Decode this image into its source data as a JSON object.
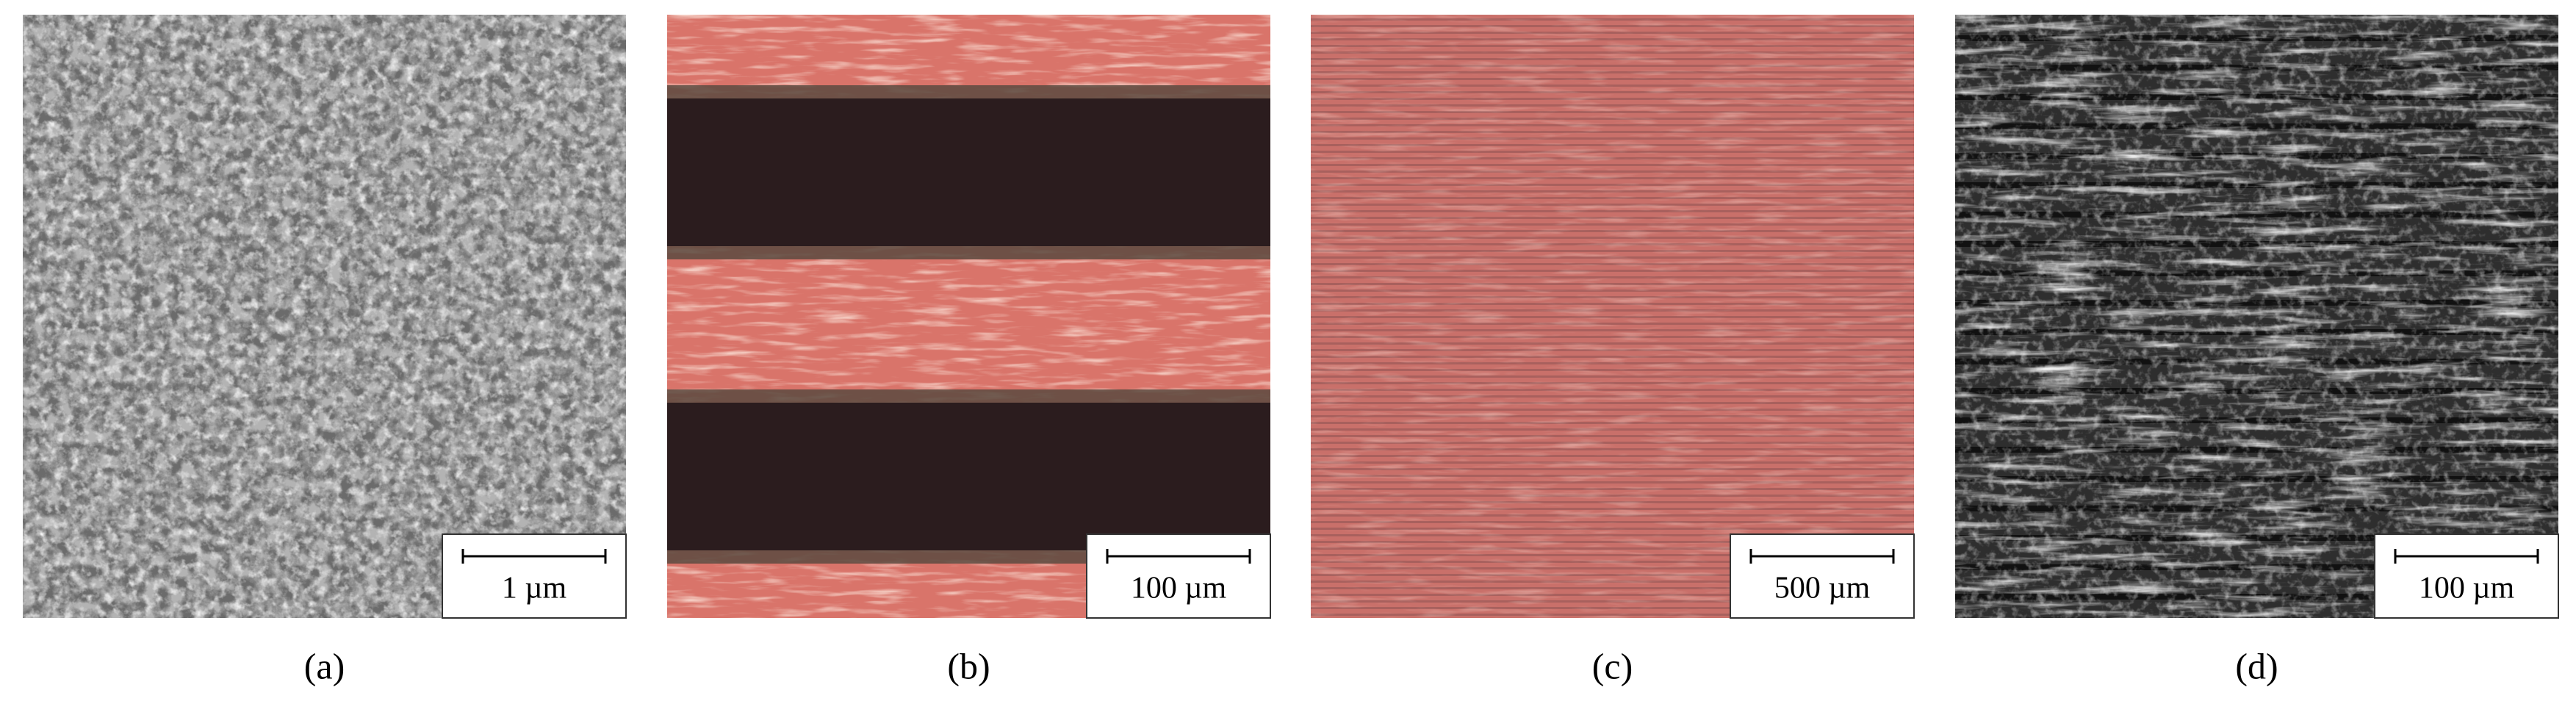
{
  "figure": {
    "panels": [
      {
        "scale_bar": "1 µm",
        "caption": "(a)"
      },
      {
        "scale_bar": "100 µm",
        "caption": "(b)"
      },
      {
        "scale_bar": "500 µm",
        "caption": "(c)"
      },
      {
        "scale_bar": "100 µm",
        "caption": "(d)"
      }
    ]
  }
}
